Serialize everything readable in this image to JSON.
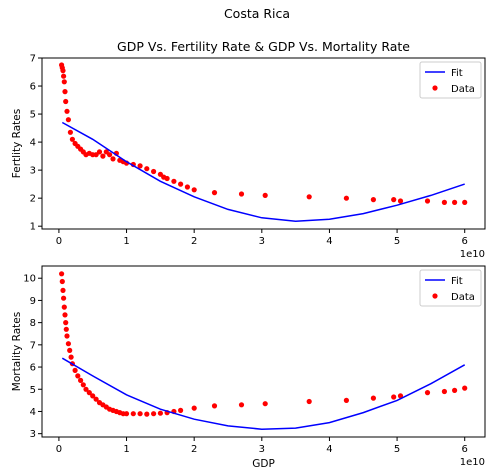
{
  "suptitle": "Costa Rica",
  "colors": {
    "fit": "#0000ff",
    "data": "#ff0000",
    "axis": "#000000"
  },
  "chart_data": [
    {
      "type": "scatter",
      "title": "GDP Vs. Fertility Rate & GDP Vs. Mortality Rate",
      "xlabel": "",
      "ylabel": "Fertlity Rates",
      "x_offset_label": "1e10",
      "xlim": [
        -0.25,
        6.3
      ],
      "ylim": [
        0.9,
        7.0
      ],
      "x_ticks": [
        0,
        1,
        2,
        3,
        4,
        5,
        6
      ],
      "x_tick_labels": [
        "0",
        "1",
        "2",
        "3",
        "4",
        "5",
        "6"
      ],
      "y_ticks": [
        1,
        2,
        3,
        4,
        5,
        6,
        7
      ],
      "y_tick_labels": [
        "1",
        "2",
        "3",
        "4",
        "5",
        "6",
        "7"
      ],
      "legend": {
        "position": "top-right",
        "fit_label": "Fit",
        "data_label": "Data"
      },
      "series": [
        {
          "name": "Data",
          "kind": "scatter",
          "x": [
            0.04,
            0.05,
            0.06,
            0.07,
            0.08,
            0.09,
            0.1,
            0.12,
            0.14,
            0.17,
            0.2,
            0.24,
            0.28,
            0.32,
            0.36,
            0.4,
            0.45,
            0.5,
            0.55,
            0.6,
            0.65,
            0.7,
            0.75,
            0.8,
            0.85,
            0.9,
            0.95,
            1.0,
            1.1,
            1.2,
            1.3,
            1.4,
            1.5,
            1.55,
            1.6,
            1.7,
            1.8,
            1.9,
            2.0,
            2.3,
            2.7,
            3.05,
            3.7,
            4.25,
            4.65,
            4.95,
            5.05,
            5.45,
            5.7,
            5.85,
            6.0
          ],
          "y": [
            6.75,
            6.65,
            6.55,
            6.35,
            6.15,
            5.8,
            5.45,
            5.1,
            4.8,
            4.35,
            4.1,
            3.95,
            3.85,
            3.75,
            3.65,
            3.55,
            3.6,
            3.55,
            3.55,
            3.65,
            3.5,
            3.65,
            3.55,
            3.4,
            3.6,
            3.35,
            3.3,
            3.25,
            3.2,
            3.15,
            3.05,
            2.95,
            2.85,
            2.75,
            2.7,
            2.6,
            2.5,
            2.4,
            2.3,
            2.2,
            2.15,
            2.1,
            2.05,
            2.0,
            1.95,
            1.95,
            1.9,
            1.9,
            1.85,
            1.85,
            1.85
          ]
        },
        {
          "name": "Fit",
          "kind": "line",
          "x": [
            0.05,
            0.5,
            1.0,
            1.5,
            2.0,
            2.5,
            3.0,
            3.5,
            4.0,
            4.5,
            5.0,
            5.5,
            6.0
          ],
          "y": [
            4.7,
            4.1,
            3.3,
            2.6,
            2.05,
            1.6,
            1.3,
            1.18,
            1.25,
            1.45,
            1.75,
            2.1,
            2.5
          ]
        }
      ]
    },
    {
      "type": "scatter",
      "title": "",
      "xlabel": "GDP",
      "ylabel": "Mortality Rates",
      "x_offset_label": "1e10",
      "xlim": [
        -0.25,
        6.3
      ],
      "ylim": [
        2.85,
        10.55
      ],
      "x_ticks": [
        0,
        1,
        2,
        3,
        4,
        5,
        6
      ],
      "x_tick_labels": [
        "0",
        "1",
        "2",
        "3",
        "4",
        "5",
        "6"
      ],
      "y_ticks": [
        3,
        4,
        5,
        6,
        7,
        8,
        9,
        10
      ],
      "y_tick_labels": [
        "3",
        "4",
        "5",
        "6",
        "7",
        "8",
        "9",
        "10"
      ],
      "legend": {
        "position": "top-right",
        "fit_label": "Fit",
        "data_label": "Data"
      },
      "series": [
        {
          "name": "Data",
          "kind": "scatter",
          "x": [
            0.04,
            0.05,
            0.06,
            0.07,
            0.08,
            0.09,
            0.1,
            0.11,
            0.12,
            0.14,
            0.16,
            0.18,
            0.2,
            0.24,
            0.28,
            0.32,
            0.36,
            0.4,
            0.45,
            0.5,
            0.55,
            0.6,
            0.65,
            0.7,
            0.75,
            0.8,
            0.85,
            0.9,
            0.95,
            1.0,
            1.1,
            1.2,
            1.3,
            1.4,
            1.5,
            1.6,
            1.7,
            1.8,
            2.0,
            2.3,
            2.7,
            3.05,
            3.7,
            4.25,
            4.65,
            4.95,
            5.05,
            5.45,
            5.7,
            5.85,
            6.0
          ],
          "y": [
            10.2,
            9.85,
            9.45,
            9.1,
            8.7,
            8.35,
            8.0,
            7.7,
            7.4,
            7.05,
            6.75,
            6.45,
            6.15,
            5.85,
            5.6,
            5.4,
            5.2,
            5.0,
            4.85,
            4.7,
            4.55,
            4.4,
            4.3,
            4.2,
            4.1,
            4.05,
            4.0,
            3.95,
            3.9,
            3.9,
            3.9,
            3.9,
            3.88,
            3.9,
            3.92,
            3.95,
            4.0,
            4.05,
            4.15,
            4.25,
            4.3,
            4.35,
            4.45,
            4.5,
            4.6,
            4.65,
            4.7,
            4.85,
            4.9,
            4.95,
            5.05
          ]
        },
        {
          "name": "Fit",
          "kind": "line",
          "x": [
            0.05,
            0.5,
            1.0,
            1.5,
            2.0,
            2.5,
            3.0,
            3.5,
            4.0,
            4.5,
            5.0,
            5.5,
            6.0
          ],
          "y": [
            6.4,
            5.6,
            4.75,
            4.1,
            3.65,
            3.35,
            3.2,
            3.25,
            3.5,
            3.95,
            4.5,
            5.25,
            6.1
          ]
        }
      ]
    }
  ]
}
